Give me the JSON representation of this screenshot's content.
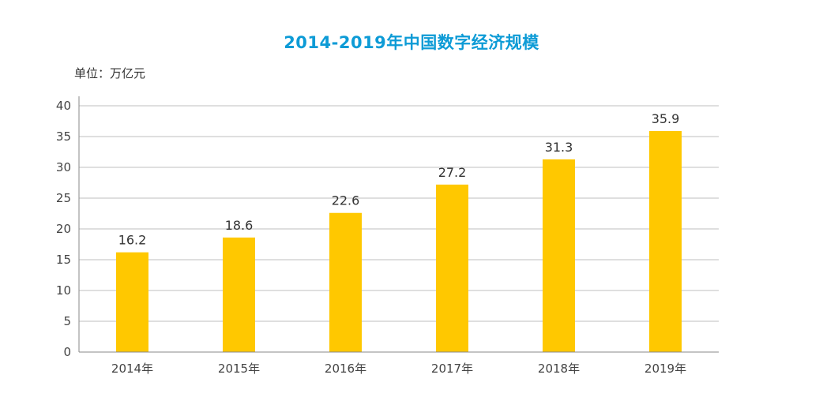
{
  "chart_data": {
    "type": "bar",
    "title": "2014-2019年中国数字经济规模",
    "unit_label": "单位：万亿元",
    "categories": [
      "2014年",
      "2015年",
      "2016年",
      "2017年",
      "2018年",
      "2019年"
    ],
    "values": [
      16.2,
      18.6,
      22.6,
      27.2,
      31.3,
      35.9
    ],
    "value_labels": [
      "16.2",
      "18.6",
      "22.6",
      "27.2",
      "31.3",
      "35.9"
    ],
    "yticks": [
      "0",
      "5",
      "10",
      "15",
      "20",
      "25",
      "30",
      "35",
      "40"
    ],
    "ylim": [
      0,
      40
    ],
    "grid": true,
    "legend": "none",
    "bar_color": "#ffc800",
    "title_color": "#0d9bd6",
    "grid_color": "#bfbfbf",
    "axis_color": "#888888"
  }
}
